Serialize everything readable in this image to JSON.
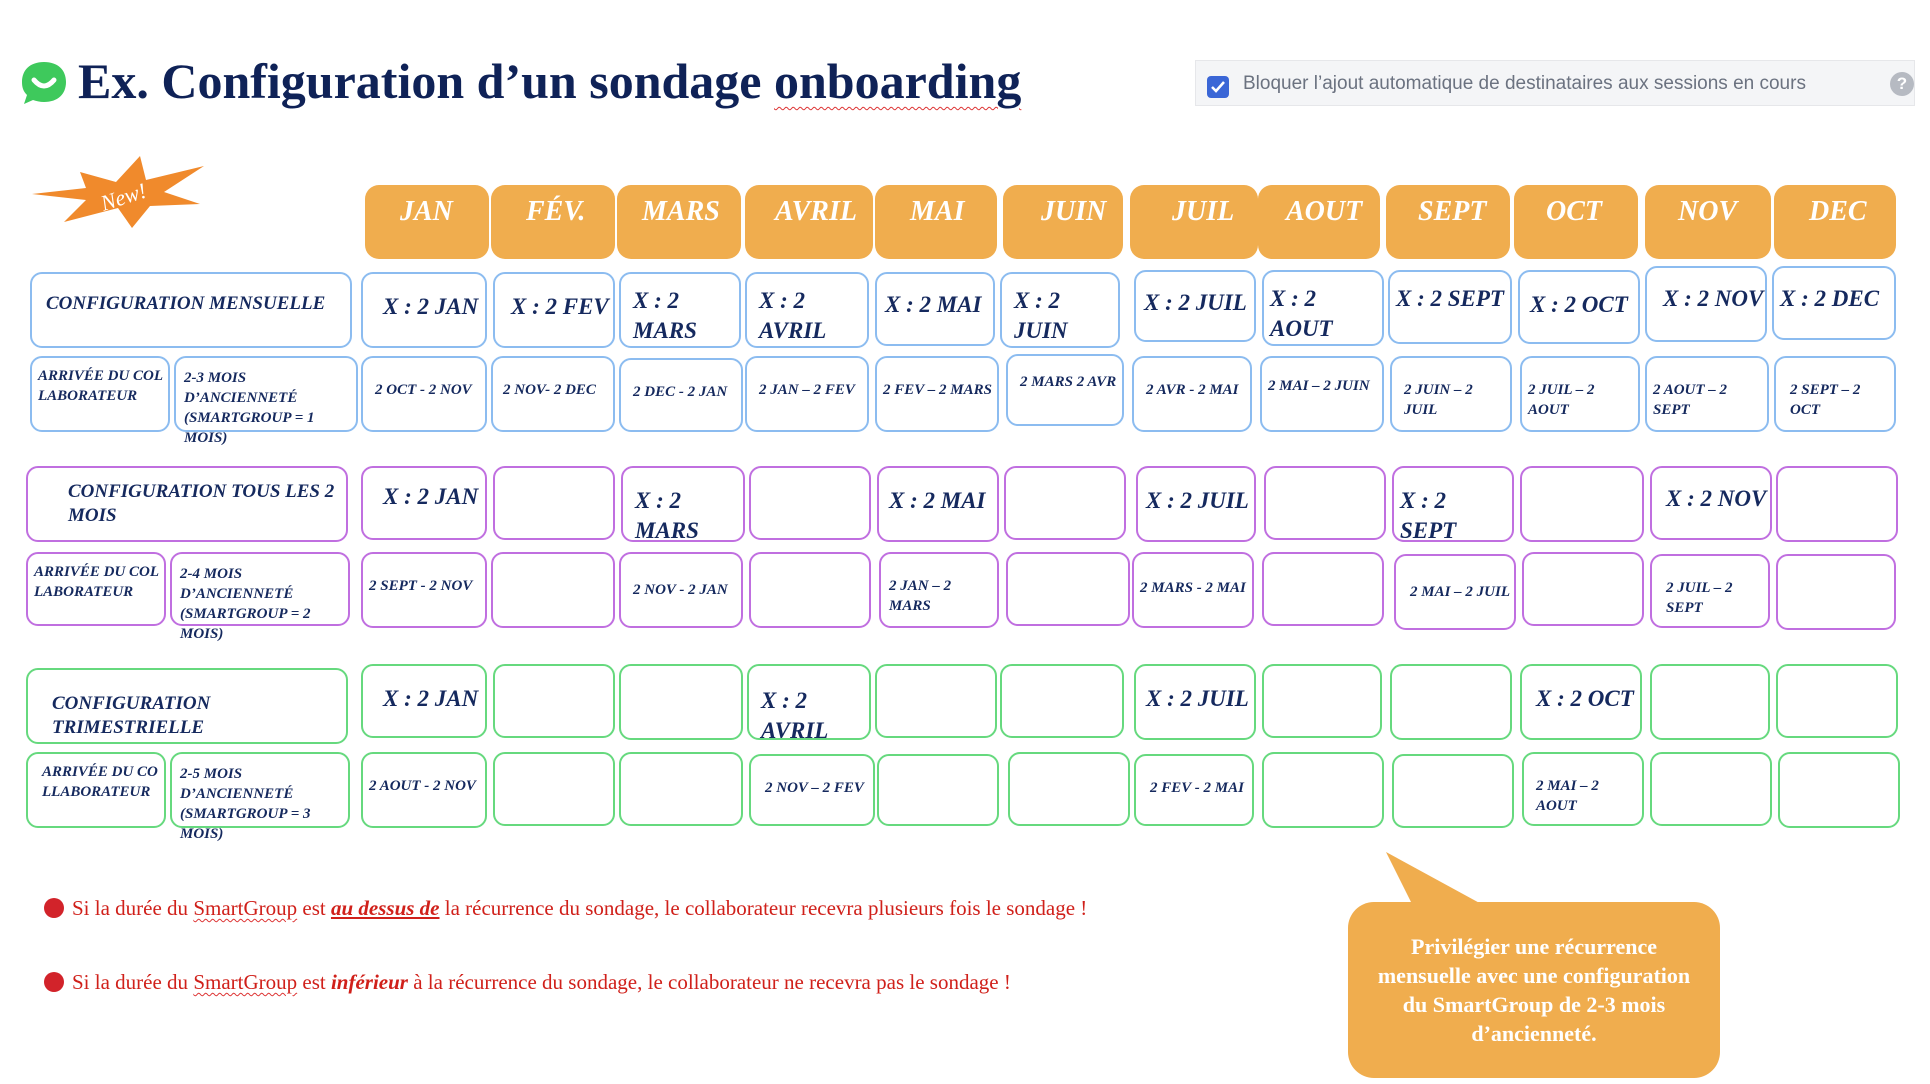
{
  "title": {
    "prefix": "Ex. Configuration d’un sondage ",
    "highlight": "onboarding"
  },
  "setting": {
    "label": "Bloquer l’ajout automatique de destinataires aux sessions en cours",
    "help": "?"
  },
  "badge": "New!",
  "months": [
    "JAN",
    "FÉV.",
    "MARS",
    "AVRIL",
    "MAI",
    "JUIN",
    "JUIL",
    "AOUT",
    "SEPT",
    "OCT",
    "NOV",
    "DEC"
  ],
  "colors": {
    "accent": "#f0ad4e",
    "title": "#0f2257",
    "blue": "#8cbcf0",
    "purple": "#c06fe0",
    "green": "#66d97e",
    "warning": "#d0201a"
  },
  "monthly": {
    "label": "CONFIGURATION MENSUELLE",
    "arrival": "ARRIVÉE DU COLLABORATEUR",
    "seniority": "2-3 MOIS D’ANCIENNETÉ (SMARTGROUP = 1 MOIS)",
    "sends": [
      "X : 2 JAN",
      "X : 2 FEV",
      "X : 2 MARS",
      "X : 2 AVRIL",
      "X : 2 MAI",
      "X : 2 JUIN",
      "X : 2 JUIL",
      "X : 2 AOUT",
      "X : 2 SEPT",
      "X : 2 OCT",
      "X : 2 NOV",
      "X : 2 DEC"
    ],
    "ranges": [
      "2 OCT - 2 NOV",
      "2 NOV- 2 DEC",
      "2 DEC - 2 JAN",
      "2 JAN – 2 FEV",
      "2 FEV – 2 MARS",
      "2 MARS 2 AVR",
      "2 AVR - 2 MAI",
      "2 MAI – 2 JUIN",
      "2 JUIN – 2 JUIL",
      "2 JUIL – 2 AOUT",
      "2 AOUT – 2 SEPT",
      "2 SEPT – 2 OCT"
    ]
  },
  "bimonthly": {
    "label": "CONFIGURATION TOUS LES 2 MOIS",
    "arrival": "ARRIVÉE DU COLLABORATEUR",
    "seniority": "2-4 MOIS D’ANCIENNETÉ (SMARTGROUP = 2 MOIS)",
    "sends": [
      "X : 2 JAN",
      "",
      "X : 2 MARS",
      "",
      "X : 2 MAI",
      "",
      "X : 2 JUIL",
      "",
      "X : 2 SEPT",
      "",
      "X : 2 NOV",
      ""
    ],
    "ranges": [
      "2 SEPT - 2 NOV",
      "",
      "2 NOV - 2 JAN",
      "",
      "2 JAN – 2 MARS",
      "",
      "2 MARS - 2 MAI",
      "",
      "2 MAI – 2 JUIL",
      "",
      "2 JUIL – 2 SEPT",
      ""
    ]
  },
  "quarterly": {
    "label": "CONFIGURATION TRIMESTRIELLE",
    "arrival": "ARRIVÉE DU COLLABORATEUR",
    "seniority": "2-5 MOIS D’ANCIENNETÉ (SMARTGROUP = 3 MOIS)",
    "sends": [
      "X : 2 JAN",
      "",
      "",
      "X : 2 AVRIL",
      "",
      "",
      "X : 2 JUIL",
      "",
      "",
      "X : 2 OCT",
      "",
      ""
    ],
    "ranges": [
      "2 AOUT - 2 NOV",
      "",
      "",
      "2 NOV – 2 FEV",
      "",
      "",
      "2 FEV - 2 MAI",
      "",
      "",
      "2 MAI – 2 AOUT",
      "",
      ""
    ]
  },
  "notes": {
    "n1": {
      "a": "Si la durée du ",
      "sg": "SmartGroup",
      "b": " est ",
      "em": "au dessus de",
      "c": " la récurrence du sondage, le collaborateur recevra plusieurs fois le sondage !"
    },
    "n2": {
      "a": "Si la durée du ",
      "sg": "SmartGroup",
      "b": " est ",
      "em": "inférieur",
      "c": " à la récurrence du sondage, le collaborateur ne recevra pas le sondage !"
    }
  },
  "tip": "Privilégier une récurrence mensuelle avec une configuration du SmartGroup de 2-3 mois d’ancienneté."
}
